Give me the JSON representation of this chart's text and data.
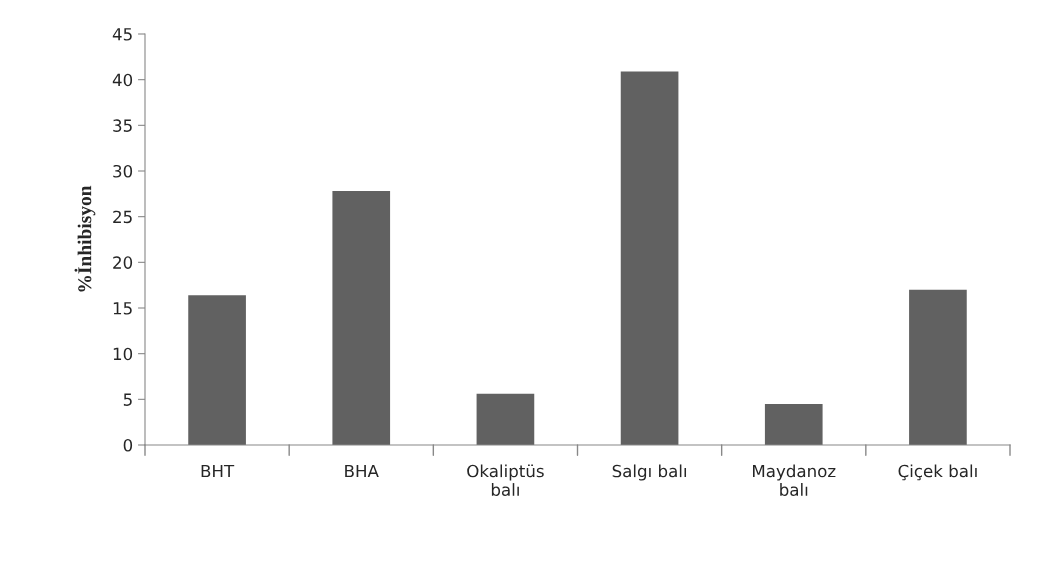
{
  "chart_data": {
    "type": "bar",
    "ylabel": "%İnhibisyon",
    "categories": [
      "BHT",
      "BHA",
      "Okaliptüs\nbalı",
      "Salgı balı",
      "Maydanoz\nbalı",
      "Çiçek balı"
    ],
    "values": [
      16.4,
      27.8,
      5.6,
      40.9,
      4.5,
      17.0
    ],
    "color": "#616161",
    "ylim": [
      0,
      45
    ],
    "yticks": [
      0,
      5,
      10,
      15,
      20,
      25,
      30,
      35,
      40,
      45
    ],
    "grid": false
  }
}
